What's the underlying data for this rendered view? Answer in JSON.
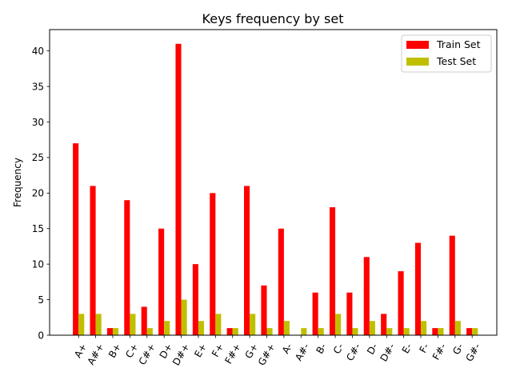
{
  "chart_data": {
    "type": "bar",
    "title": "Keys frequency by set",
    "xlabel": "",
    "ylabel": "Frequency",
    "ylim": [
      0,
      43
    ],
    "yticks": [
      0,
      5,
      10,
      15,
      20,
      25,
      30,
      35,
      40
    ],
    "grid": false,
    "legend_position": "top-right",
    "categories": [
      "A+",
      "A#+",
      "B+",
      "C+",
      "C#+",
      "D+",
      "D#+",
      "E+",
      "F+",
      "F#+",
      "G+",
      "G#+",
      "A-",
      "A#-",
      "B-",
      "C-",
      "C#-",
      "D-",
      "D#-",
      "E-",
      "F-",
      "F#-",
      "G-",
      "G#-"
    ],
    "series": [
      {
        "name": "Train Set",
        "color": "#ff0000",
        "values": [
          27,
          21,
          1,
          19,
          4,
          15,
          41,
          10,
          20,
          1,
          21,
          7,
          15,
          0,
          6,
          18,
          6,
          11,
          3,
          9,
          13,
          1,
          14,
          1
        ]
      },
      {
        "name": "Test Set",
        "color": "#bfbf00",
        "values": [
          3,
          3,
          1,
          3,
          1,
          2,
          5,
          2,
          3,
          1,
          3,
          1,
          2,
          1,
          1,
          3,
          1,
          2,
          1,
          1,
          2,
          1,
          2,
          1
        ]
      }
    ]
  }
}
